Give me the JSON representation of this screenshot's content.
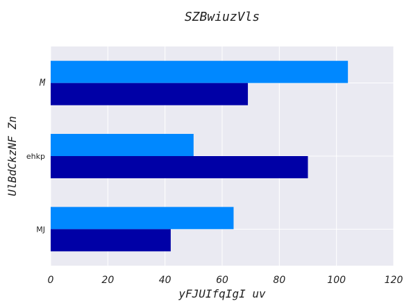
{
  "chart_data": {
    "type": "bar",
    "orientation": "horizontal",
    "title": "SZBwiuzVls",
    "xlabel": "yFJUIfqIgI uv",
    "ylabel": "UlBdCkzNF Zn",
    "categories": [
      "M",
      "ehkp",
      "MJ"
    ],
    "series": [
      {
        "values": [
          104,
          50,
          64
        ],
        "color": "#0088ff"
      },
      {
        "values": [
          69,
          90,
          42
        ],
        "color": "#0000a6"
      }
    ],
    "xlim": [
      0,
      120
    ],
    "xticks": [
      0,
      20,
      40,
      60,
      80,
      100,
      120
    ],
    "grid": true,
    "legend": "none",
    "background": "#eaeaf2"
  }
}
